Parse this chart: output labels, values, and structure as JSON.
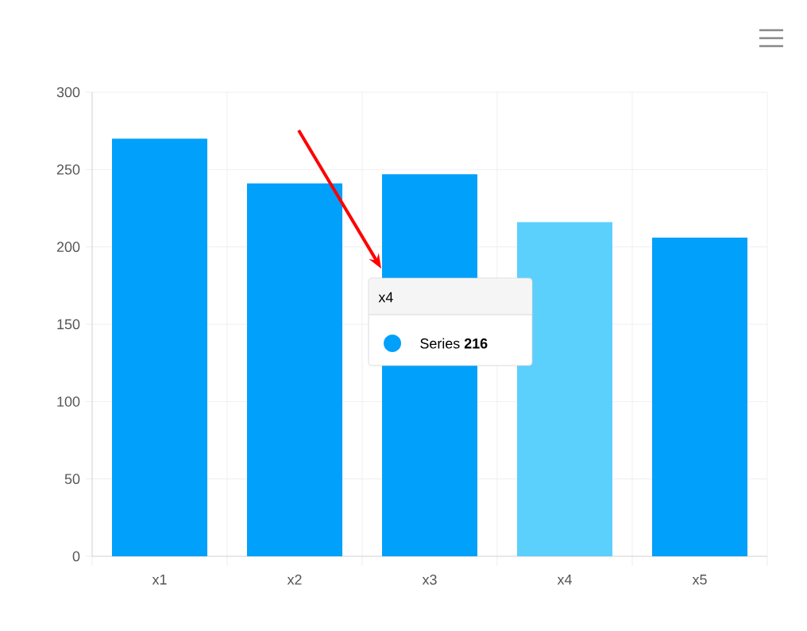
{
  "chart_data": {
    "type": "bar",
    "categories": [
      "x1",
      "x2",
      "x3",
      "x4",
      "x5"
    ],
    "values": [
      270,
      241,
      247,
      216,
      206
    ],
    "colors": [
      "#00a0fb",
      "#00a0fb",
      "#00a0fb",
      "#5bd0fd",
      "#00a0fb"
    ],
    "ylim": [
      0,
      300
    ],
    "yticks": [
      0,
      50,
      100,
      150,
      200,
      250,
      300
    ],
    "grid": true,
    "annotations": [
      "x4",
      "Series **216**"
    ]
  }
}
